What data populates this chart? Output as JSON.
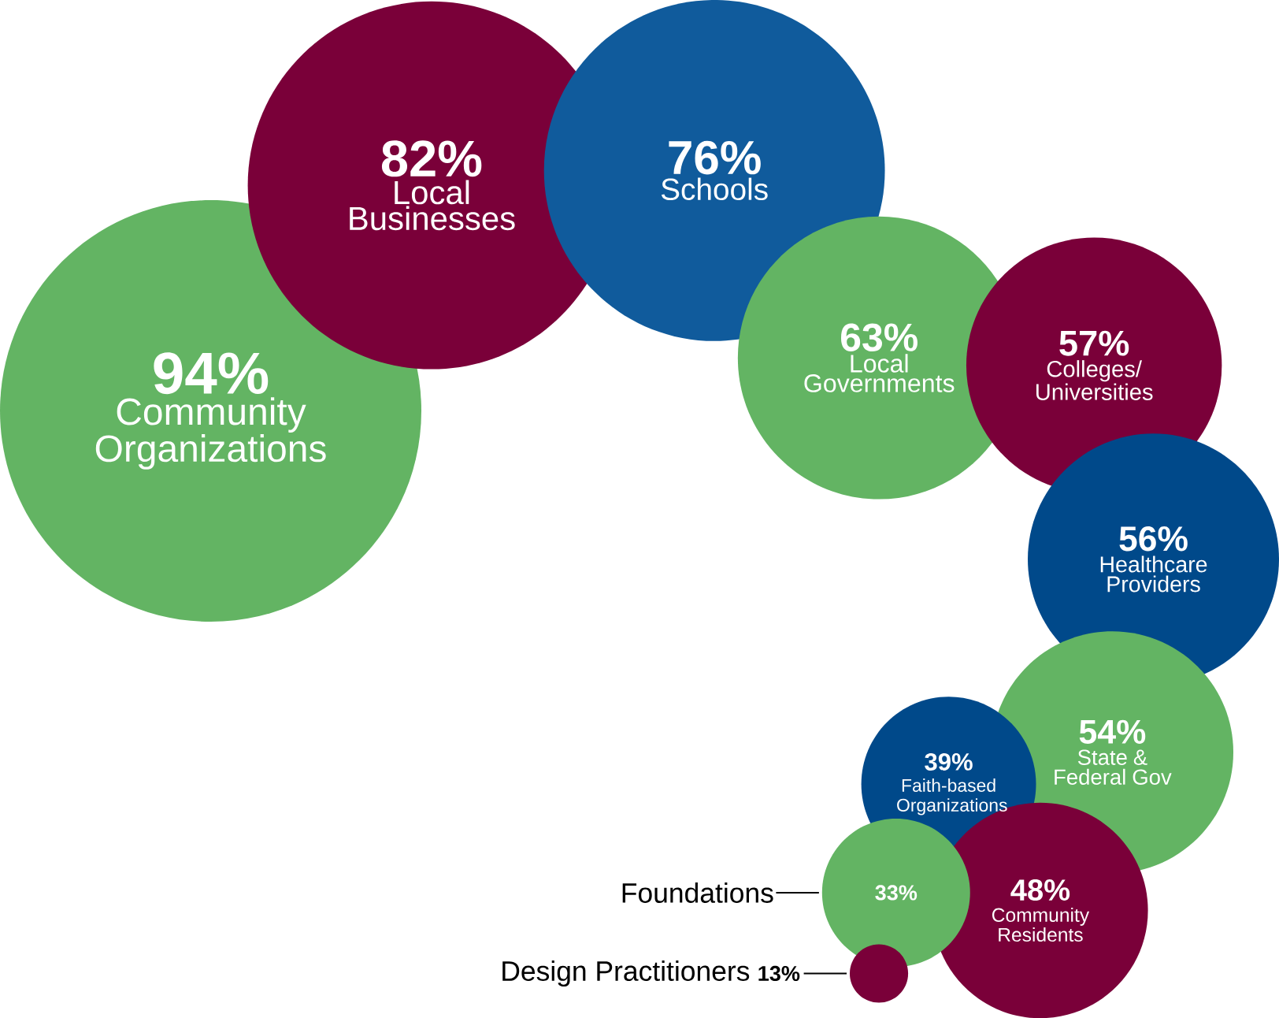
{
  "chart_data": {
    "type": "other",
    "categories": [
      "Community Organizations",
      "Local Businesses",
      "Schools",
      "Local Governments",
      "Colleges/ Universities",
      "Healthcare Providers",
      "State & Federal Gov",
      "Faith-based Organizations",
      "Community Residents",
      "Foundations",
      "Design Practitioners"
    ],
    "values": [
      94,
      82,
      76,
      63,
      57,
      56,
      54,
      39,
      48,
      33,
      13
    ],
    "value_labels": [
      "94%",
      "82%",
      "76%",
      "63%",
      "57%",
      "56%",
      "54%",
      "39%",
      "48%",
      "33%",
      "13%"
    ],
    "colors": [
      "#63b463",
      "#7a0039",
      "#105b9c",
      "#63b463",
      "#7a0039",
      "#00498a",
      "#63b463",
      "#00498a",
      "#7a0039",
      "#63b463",
      "#7a0039"
    ]
  }
}
